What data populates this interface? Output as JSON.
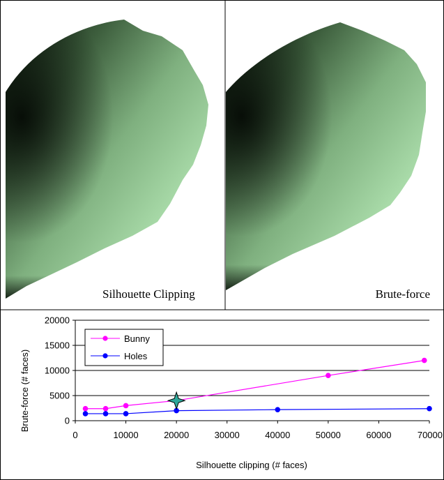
{
  "panels": {
    "left_caption": "Silhouette Clipping",
    "right_caption": "Brute-force"
  },
  "chart_data": {
    "type": "line",
    "xlabel": "Silhouette clipping (# faces)",
    "ylabel": "Brute-force (# faces)",
    "xlim": [
      0,
      70000
    ],
    "ylim": [
      0,
      20000
    ],
    "x_ticks": [
      "0",
      "10000",
      "20000",
      "30000",
      "40000",
      "50000",
      "60000",
      "70000"
    ],
    "y_ticks": [
      "0",
      "5000",
      "10000",
      "15000",
      "20000"
    ],
    "grid": "horizontal",
    "legend_position": "top-left",
    "series": [
      {
        "name": "Bunny",
        "color": "#ff00ff",
        "x": [
          2000,
          6000,
          10000,
          20000,
          50000,
          69000
        ],
        "y": [
          2400,
          2400,
          3000,
          4000,
          9000,
          12000
        ]
      },
      {
        "name": "Holes",
        "color": "#0000ff",
        "x": [
          2000,
          6000,
          10000,
          20000,
          40000,
          70000
        ],
        "y": [
          1400,
          1400,
          1400,
          2000,
          2200,
          2400
        ]
      }
    ],
    "highlight": {
      "x": 20000,
      "y": 4000,
      "color": "#2fa89a"
    }
  }
}
